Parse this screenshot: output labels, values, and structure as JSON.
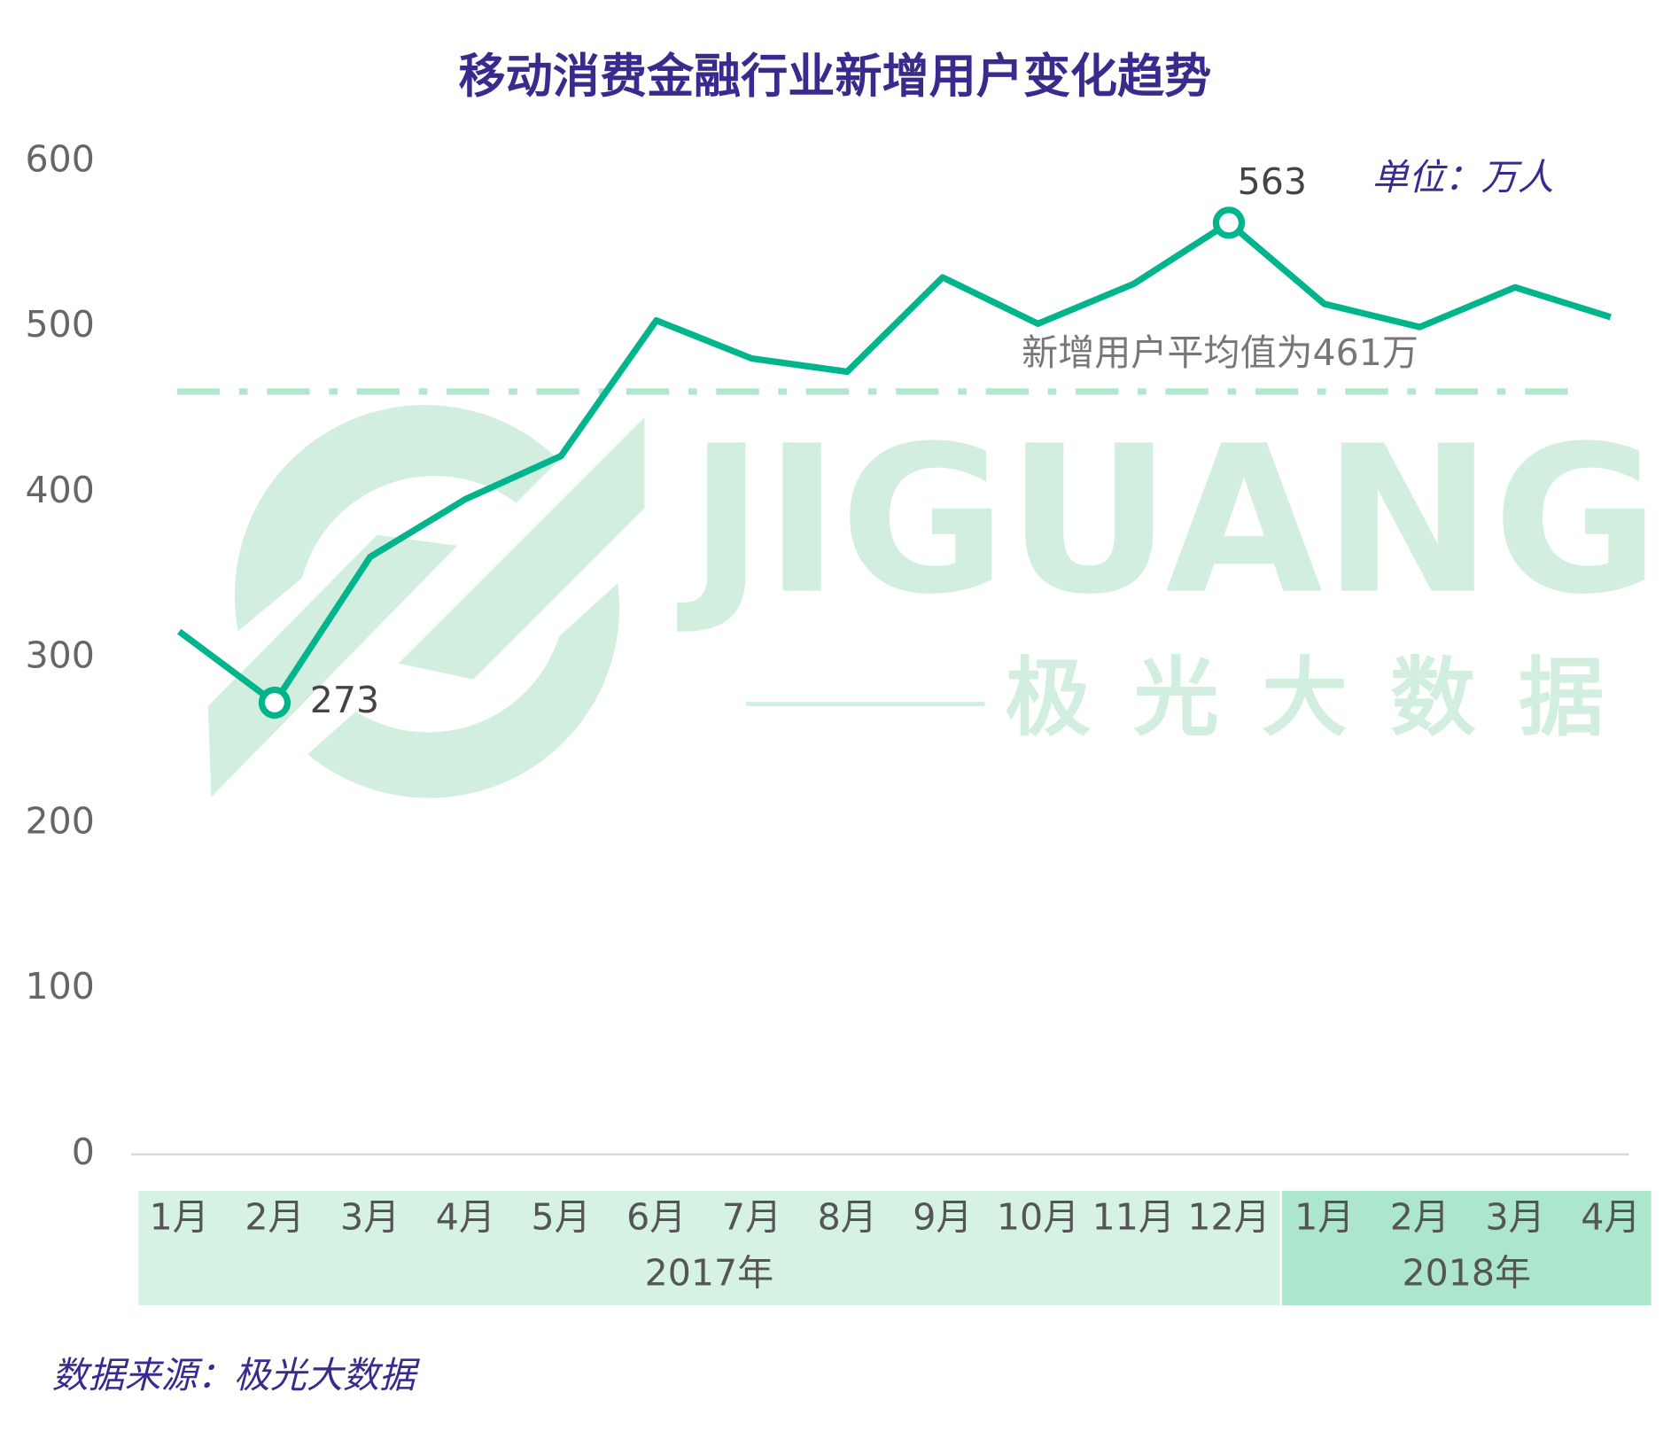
{
  "chart_data": {
    "type": "line",
    "title": "移动消费金融行业新增用户变化趋势",
    "unit_note": "单位：万人",
    "source": "数据来源：极光大数据",
    "watermark": [
      "JIGUANG",
      "极光大数据"
    ],
    "category_groups": [
      {
        "label": "2017年",
        "categories": [
          "1月",
          "2月",
          "3月",
          "4月",
          "5月",
          "6月",
          "7月",
          "8月",
          "9月",
          "10月",
          "11月",
          "12月"
        ]
      },
      {
        "label": "2018年",
        "categories": [
          "1月",
          "2月",
          "3月",
          "4月"
        ]
      }
    ],
    "series": [
      {
        "name": "新增用户",
        "color": "#00b48c",
        "values": [
          316,
          273,
          361,
          396,
          422,
          504,
          481,
          473,
          530,
          502,
          526,
          563,
          514,
          500,
          524,
          506
        ],
        "value_labels": [
          null,
          "273",
          null,
          null,
          null,
          null,
          null,
          null,
          null,
          null,
          null,
          "563",
          null,
          null,
          null,
          null
        ]
      }
    ],
    "average": {
      "value": 461,
      "label": "新增用户平均值为461万",
      "color": "#b3e6cf"
    },
    "ylim": [
      0,
      600
    ],
    "yticks": [
      0,
      100,
      200,
      300,
      400,
      500,
      600
    ],
    "group_colors": [
      "#d6f2e4",
      "#ace6cc"
    ]
  }
}
